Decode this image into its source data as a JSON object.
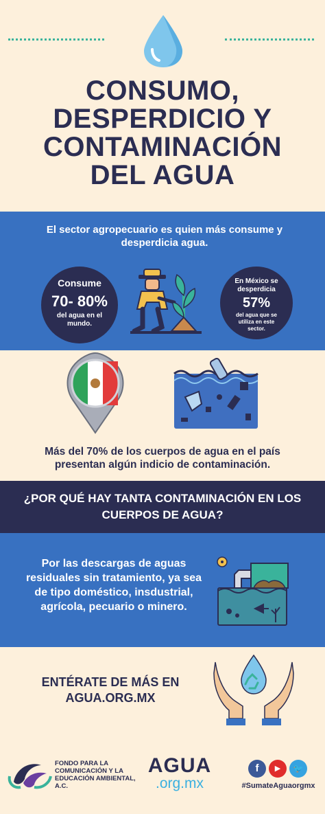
{
  "header": {
    "title_lines": [
      "CONSUMO,",
      "DESPERDICIO Y",
      "CONTAMINACIÓN",
      "DEL AGUA"
    ]
  },
  "section1": {
    "text": "El sector agropecuario es quien más consume y desperdicia agua.",
    "left_circle": {
      "line1": "Consume",
      "percent": "70- 80%",
      "line3": "del agua en el mundo."
    },
    "right_circle": {
      "line1": "En México se desperdicia",
      "percent": "57%",
      "line3": "del agua que se utiliza en este sector."
    }
  },
  "section2": {
    "text": "Más del 70% de los cuerpos de agua en el país presentan algún indicio de contaminación."
  },
  "question": {
    "text": "¿POR QUÉ HAY TANTA CONTAMINACIÓN EN LOS CUERPOS DE AGUA?"
  },
  "section3": {
    "text": "Por las descargas de aguas residuales sin tratamiento, ya sea de tipo doméstico, insdustrial, agrícola, pecuario o minero."
  },
  "section4": {
    "text": "ENTÉRATE DE MÁS EN AGUA.ORG.MX"
  },
  "footer": {
    "org_name": "FONDO PARA LA COMUNICACIÓN Y LA EDUCACIÓN AMBIENTAL, A.C.",
    "agua_logo_top": "AGUA",
    "agua_logo_bottom": ".org.mx",
    "social": {
      "facebook_glyph": "f",
      "youtube_glyph": "▶",
      "twitter_glyph": "🐦"
    },
    "hashtag": "#SumateAguaorgmx"
  },
  "icons": {
    "drop": "water-drop-icon",
    "farmer": "farmer-icon",
    "pin": "mexico-flag-pin-icon",
    "ocean": "polluted-ocean-icon",
    "factory": "wastewater-discharge-icon",
    "hands": "hands-recycle-drop-icon"
  },
  "colors": {
    "background": "#fdf0dc",
    "navy": "#2b2d52",
    "blue": "#3871c1",
    "teal": "#3ab39b",
    "light_blue": "#3ab0e0"
  }
}
